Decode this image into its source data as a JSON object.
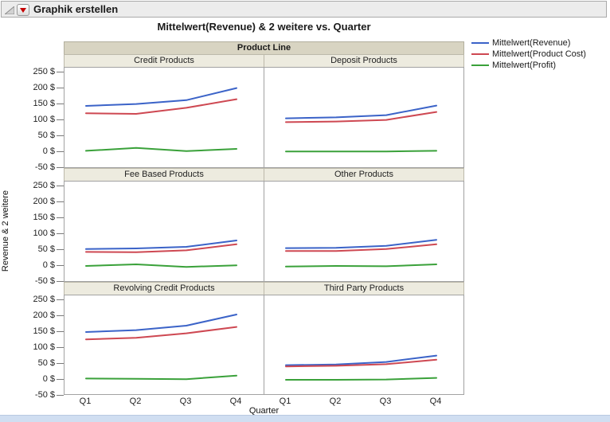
{
  "window": {
    "title": "Graphik erstellen"
  },
  "icons": {
    "disclosure": "outline-disclosure-triangle",
    "menu": "red-triangle-down"
  },
  "chart_data": {
    "type": "line",
    "title": "Mittelwert(Revenue) & 2 weitere vs. Quarter",
    "xlabel": "Quarter",
    "ylabel": "Revenue & 2 weitere",
    "facet_variable": "Product Line",
    "x_categories": [
      "Q1",
      "Q2",
      "Q3",
      "Q4"
    ],
    "y_ticks": [
      "250 $",
      "200 $",
      "150 $",
      "100 $",
      "50 $",
      "0 $",
      "-50 $"
    ],
    "y_range": [
      -50,
      250
    ],
    "grid": false,
    "legend_position": "top-right",
    "series_meta": [
      {
        "name": "Mittelwert(Revenue)",
        "color": "#3b63c8"
      },
      {
        "name": "Mittelwert(Product Cost)",
        "color": "#ce4852"
      },
      {
        "name": "Mittelwert(Profit)",
        "color": "#3aa13a"
      }
    ],
    "panels": [
      {
        "label": "Credit Products",
        "series": [
          {
            "name": "Mittelwert(Revenue)",
            "values": [
              145,
              151,
              163,
              201
            ]
          },
          {
            "name": "Mittelwert(Product Cost)",
            "values": [
              122,
              120,
              139,
              166
            ]
          },
          {
            "name": "Mittelwert(Profit)",
            "values": [
              4,
              13,
              3,
              10
            ]
          }
        ]
      },
      {
        "label": "Deposit Products",
        "series": [
          {
            "name": "Mittelwert(Revenue)",
            "values": [
              106,
              109,
              116,
              146
            ]
          },
          {
            "name": "Mittelwert(Product Cost)",
            "values": [
              94,
              96,
              101,
              126
            ]
          },
          {
            "name": "Mittelwert(Profit)",
            "values": [
              2,
              2,
              2,
              4
            ]
          }
        ]
      },
      {
        "label": "Fee Based Products",
        "series": [
          {
            "name": "Mittelwert(Revenue)",
            "values": [
              53,
              55,
              60,
              80
            ]
          },
          {
            "name": "Mittelwert(Product Cost)",
            "values": [
              44,
              43,
              49,
              68
            ]
          },
          {
            "name": "Mittelwert(Profit)",
            "values": [
              0,
              5,
              -3,
              2
            ]
          }
        ]
      },
      {
        "label": "Other Products",
        "series": [
          {
            "name": "Mittelwert(Revenue)",
            "values": [
              56,
              57,
              63,
              82
            ]
          },
          {
            "name": "Mittelwert(Product Cost)",
            "values": [
              47,
              47,
              53,
              68
            ]
          },
          {
            "name": "Mittelwert(Profit)",
            "values": [
              -2,
              0,
              -1,
              5
            ]
          }
        ]
      },
      {
        "label": "Revolving Credit Products",
        "series": [
          {
            "name": "Mittelwert(Revenue)",
            "values": [
              150,
              156,
              170,
              205
            ]
          },
          {
            "name": "Mittelwert(Product Cost)",
            "values": [
              127,
              132,
              146,
              166
            ]
          },
          {
            "name": "Mittelwert(Profit)",
            "values": [
              4,
              3,
              2,
              13
            ]
          }
        ]
      },
      {
        "label": "Third Party Products",
        "series": [
          {
            "name": "Mittelwert(Revenue)",
            "values": [
              46,
              48,
              56,
              76
            ]
          },
          {
            "name": "Mittelwert(Product Cost)",
            "values": [
              42,
              44,
              49,
              63
            ]
          },
          {
            "name": "Mittelwert(Profit)",
            "values": [
              0,
              0,
              1,
              6
            ]
          }
        ]
      }
    ]
  }
}
